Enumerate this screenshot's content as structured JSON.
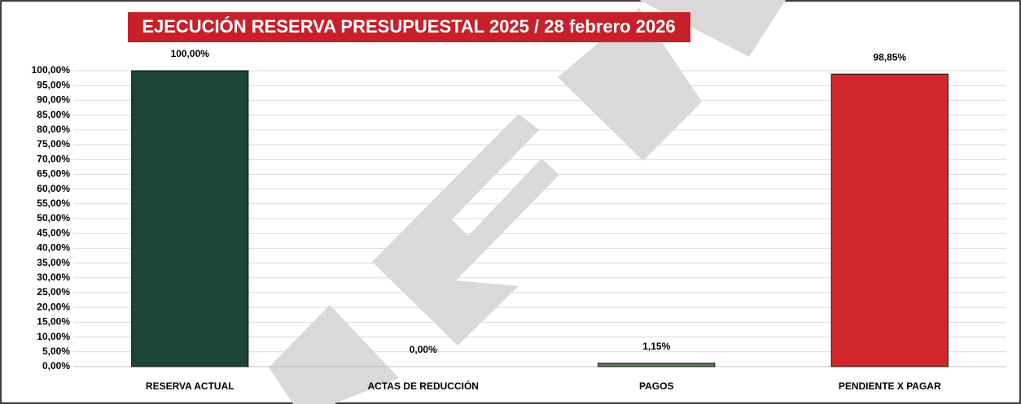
{
  "chart_data": {
    "type": "bar",
    "title": "EJECUCIÓN RESERVA PRESUPUESTAL 2025 /  28 febrero 2026",
    "categories": [
      "RESERVA ACTUAL",
      "ACTAS DE REDUCCIÓN",
      "PAGOS",
      "PENDIENTE X PAGAR"
    ],
    "values": [
      100,
      0,
      1.15,
      98.85
    ],
    "value_labels": [
      "100,00%",
      "0,00%",
      "1,15%",
      "98,85%"
    ],
    "colors": [
      "#1c4437",
      "#3a6a4a",
      "#5e7a5a",
      "#d0252b"
    ],
    "ylim": [
      0,
      100
    ],
    "yticks": [
      {
        "value": 0,
        "label": "0,00%"
      },
      {
        "value": 5,
        "label": "5,00%"
      },
      {
        "value": 10,
        "label": "10,00%"
      },
      {
        "value": 15,
        "label": "15,00%"
      },
      {
        "value": 20,
        "label": "20,00%"
      },
      {
        "value": 25,
        "label": "25,00%"
      },
      {
        "value": 30,
        "label": "30,00%"
      },
      {
        "value": 35,
        "label": "35,00%"
      },
      {
        "value": 40,
        "label": "40,00%"
      },
      {
        "value": 45,
        "label": "45,00%"
      },
      {
        "value": 50,
        "label": "50,00%"
      },
      {
        "value": 55,
        "label": "55,00%"
      },
      {
        "value": 60,
        "label": "60,00%"
      },
      {
        "value": 65,
        "label": "65,00%"
      },
      {
        "value": 70,
        "label": "70,00%"
      },
      {
        "value": 75,
        "label": "75,00%"
      },
      {
        "value": 80,
        "label": "80,00%"
      },
      {
        "value": 85,
        "label": "85,00%"
      },
      {
        "value": 90,
        "label": "90,00%"
      },
      {
        "value": 95,
        "label": "95,00%"
      },
      {
        "value": 100,
        "label": "100,00%"
      }
    ],
    "grid": true
  }
}
